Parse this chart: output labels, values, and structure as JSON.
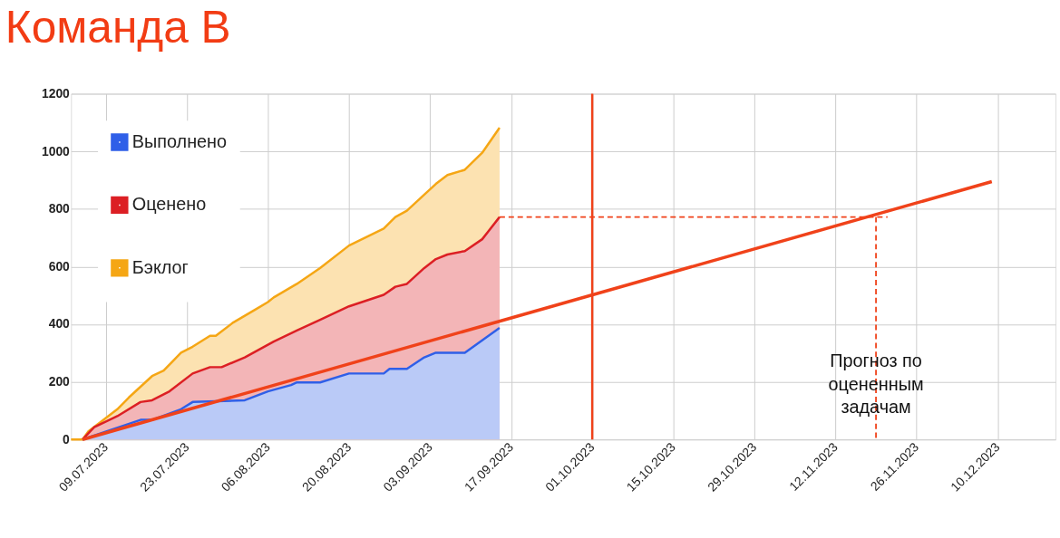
{
  "chart_data": {
    "type": "area",
    "title": "Команда В",
    "xlim": [
      "2023-07-03",
      "2023-12-20"
    ],
    "ylim": [
      0,
      1200
    ],
    "yticks": [
      0,
      200,
      400,
      600,
      800,
      1000,
      1200
    ],
    "xticks": [
      {
        "value": "2023-07-09",
        "label": "09.07.2023"
      },
      {
        "value": "2023-07-23",
        "label": "23.07.2023"
      },
      {
        "value": "2023-08-06",
        "label": "06.08.2023"
      },
      {
        "value": "2023-08-20",
        "label": "20.08.2023"
      },
      {
        "value": "2023-09-03",
        "label": "03.09.2023"
      },
      {
        "value": "2023-09-17",
        "label": "17.09.2023"
      },
      {
        "value": "2023-10-01",
        "label": "01.10.2023"
      },
      {
        "value": "2023-10-15",
        "label": "15.10.2023"
      },
      {
        "value": "2023-10-29",
        "label": "29.10.2023"
      },
      {
        "value": "2023-11-12",
        "label": "12.11.2023"
      },
      {
        "value": "2023-11-26",
        "label": "26.11.2023"
      },
      {
        "value": "2023-12-10",
        "label": "10.12.2023"
      }
    ],
    "grid": true,
    "legend": "top left",
    "series": [
      {
        "name": "Выполнено",
        "color": "#2f5fe8",
        "x": [
          "2023-07-05",
          "2023-07-10",
          "2023-07-15",
          "2023-07-17",
          "2023-07-22",
          "2023-07-24",
          "2023-08-02",
          "2023-08-06",
          "2023-08-10",
          "2023-08-11",
          "2023-08-15",
          "2023-08-20",
          "2023-08-26",
          "2023-08-27",
          "2023-08-30",
          "2023-09-02",
          "2023-09-04",
          "2023-09-09",
          "2023-09-15"
        ],
        "values": [
          0,
          34,
          68,
          68,
          105,
          130,
          136,
          167,
          189,
          198,
          198,
          229,
          229,
          245,
          245,
          285,
          301,
          301,
          387
        ]
      },
      {
        "name": "Оценено",
        "color": "#dc1f24",
        "x": [
          "2023-07-05",
          "2023-07-07",
          "2023-07-11",
          "2023-07-15",
          "2023-07-17",
          "2023-07-20",
          "2023-07-24",
          "2023-07-27",
          "2023-07-29",
          "2023-08-02",
          "2023-08-07",
          "2023-08-11",
          "2023-08-15",
          "2023-08-20",
          "2023-08-26",
          "2023-08-28",
          "2023-08-30",
          "2023-09-02",
          "2023-09-04",
          "2023-09-06",
          "2023-09-09",
          "2023-09-12",
          "2023-09-15"
        ],
        "values": [
          0,
          43,
          81,
          130,
          136,
          167,
          229,
          251,
          251,
          285,
          340,
          378,
          415,
          462,
          502,
          530,
          540,
          595,
          626,
          642,
          654,
          695,
          772
        ]
      },
      {
        "name": "Бэклог",
        "color": "#f5a614",
        "x": [
          "2023-07-03",
          "2023-07-05",
          "2023-07-06",
          "2023-07-08",
          "2023-07-11",
          "2023-07-13",
          "2023-07-15",
          "2023-07-17",
          "2023-07-19",
          "2023-07-22",
          "2023-07-24",
          "2023-07-27",
          "2023-07-28",
          "2023-07-31",
          "2023-08-04",
          "2023-08-06",
          "2023-08-07",
          "2023-08-11",
          "2023-08-15",
          "2023-08-20",
          "2023-08-26",
          "2023-08-28",
          "2023-08-30",
          "2023-09-02",
          "2023-09-04",
          "2023-09-06",
          "2023-09-09",
          "2023-09-12",
          "2023-09-15"
        ],
        "values": [
          0,
          0,
          28,
          59,
          105,
          146,
          183,
          220,
          239,
          301,
          322,
          360,
          360,
          406,
          453,
          477,
          493,
          540,
          595,
          673,
          732,
          772,
          794,
          850,
          887,
          918,
          936,
          995,
          1082
        ]
      },
      {
        "color": "#f0421a",
        "type": "line",
        "x": [
          "2023-07-05",
          "2023-12-09"
        ],
        "values": [
          0,
          895
        ]
      },
      {
        "color": "#f0421a",
        "type": "line",
        "line_style": "dashed",
        "x": [
          "2023-09-15",
          "2023-11-21"
        ],
        "values": [
          772,
          772
        ]
      },
      {
        "color": "#f0421a",
        "type": "line",
        "line_style": "dashed",
        "x": [
          "2023-11-19",
          "2023-11-19"
        ],
        "values": [
          772,
          0
        ]
      }
    ],
    "ref_lines": [
      {
        "axis": "x",
        "value": "2023-10-01",
        "color": "#f0421a"
      }
    ],
    "annotations": [
      {
        "text": "Прогноз по оцененным задачам",
        "x": "2023-11-19",
        "y": 190
      }
    ]
  }
}
